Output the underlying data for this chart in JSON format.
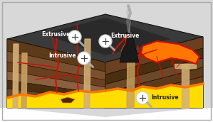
{
  "bg_color": "#d8d8d8",
  "colors": {
    "dark_rock": "#3a3a3a",
    "dark_rock2": "#4a4a4a",
    "brown1": "#5c3a1a",
    "brown2": "#7a5030",
    "brown3": "#6b4020",
    "brown4": "#8a6040",
    "brown5": "#4a2e10",
    "brown6": "#6a4828",
    "lava_yellow": "#ffdd00",
    "lava_orange": "#ff7700",
    "lava_red": "#dd1100",
    "lava_bright": "#ff4400",
    "magma_glow": "#ff9900",
    "dike_red": "#cc1100",
    "white": "#ffffff",
    "tan": "#d4b078",
    "tan2": "#c8a060",
    "black": "#111111",
    "gray": "#808080"
  },
  "labels": {
    "extrusive1": "Extrusive",
    "extrusive2": "Extrusive",
    "intrusive1": "Intrusive",
    "intrusive2": "Intrusive"
  }
}
